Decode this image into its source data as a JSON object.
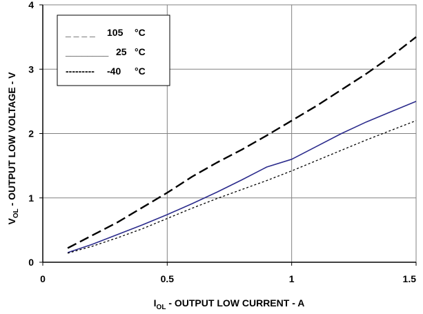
{
  "chart_data": {
    "type": "line",
    "xlim": [
      0,
      1.5
    ],
    "ylim": [
      0,
      4
    ],
    "x_ticks": [
      "0",
      "0.5",
      "1",
      "1.5"
    ],
    "y_ticks": [
      "0",
      "1",
      "2",
      "3",
      "4"
    ],
    "grid": true,
    "legend_position": "top-left",
    "xlabel": {
      "main": "I",
      "sub": "OL",
      "rest": " - OUTPUT LOW CURRENT - A"
    },
    "ylabel": {
      "main": "V",
      "sub": "OL",
      "rest": " - OUTPUT LOW VOLTAGE - V"
    },
    "series": [
      {
        "name": "105 °C",
        "legend_line": "_ _ _ _",
        "legend_value": "105",
        "unit": "°C",
        "style": "dashed",
        "color": "#000000",
        "x": [
          0.1,
          0.2,
          0.3,
          0.4,
          0.5,
          0.6,
          0.7,
          0.8,
          0.9,
          1.0,
          1.1,
          1.2,
          1.3,
          1.4,
          1.5
        ],
        "y": [
          0.22,
          0.42,
          0.62,
          0.85,
          1.08,
          1.33,
          1.55,
          1.75,
          1.97,
          2.2,
          2.43,
          2.68,
          2.93,
          3.2,
          3.5
        ]
      },
      {
        "name": "25 °C",
        "legend_line": "________",
        "legend_value": "25",
        "unit": "°C",
        "style": "solid",
        "color": "#2b2b8c",
        "x": [
          0.1,
          0.2,
          0.3,
          0.4,
          0.5,
          0.6,
          0.7,
          0.8,
          0.9,
          1.0,
          1.1,
          1.2,
          1.3,
          1.4,
          1.5
        ],
        "y": [
          0.15,
          0.28,
          0.43,
          0.58,
          0.74,
          0.91,
          1.09,
          1.28,
          1.48,
          1.6,
          1.8,
          2.0,
          2.18,
          2.34,
          2.5
        ]
      },
      {
        "name": "-40 °C",
        "legend_line": "---------",
        "legend_value": "-40",
        "unit": "°C",
        "style": "dotted",
        "color": "#000000",
        "x": [
          0.1,
          0.2,
          0.3,
          0.4,
          0.5,
          0.6,
          0.7,
          0.8,
          0.9,
          1.0,
          1.1,
          1.2,
          1.3,
          1.4,
          1.5
        ],
        "y": [
          0.14,
          0.25,
          0.38,
          0.52,
          0.68,
          0.84,
          0.99,
          1.13,
          1.27,
          1.42,
          1.58,
          1.74,
          1.9,
          2.05,
          2.2
        ]
      }
    ]
  }
}
